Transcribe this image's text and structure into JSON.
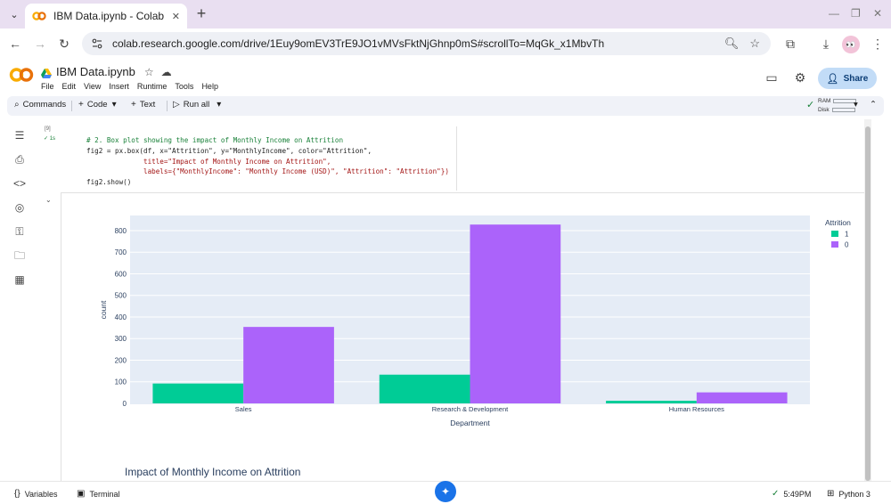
{
  "browser": {
    "tab_title": "IBM Data.ipynb - Colab",
    "url": "colab.research.google.com/drive/1Euy9omEV3TrE9JO1vMVsFktNjGhnp0mS#scrollTo=MqGk_x1MbvTh",
    "new_tab_label": "+",
    "close_label": "✕",
    "avatar_text": "👀"
  },
  "colab": {
    "logo_text": "CO",
    "notebook_title": "IBM Data.ipynb",
    "menu": [
      "File",
      "Edit",
      "View",
      "Insert",
      "Runtime",
      "Tools",
      "Help"
    ],
    "share_label": "Share"
  },
  "toolbar": {
    "commands_label": "Commands",
    "code_label": "Code",
    "text_label": "Text",
    "run_all_label": "Run all",
    "ram_label": "RAM",
    "disk_label": "Disk"
  },
  "cell": {
    "exec_count": "[9]",
    "exec_time": "✓ 1s",
    "code_lines": [
      "# 2. Box plot showing the impact of Monthly Income on Attrition",
      "fig2 = px.box(df, x=\"Attrition\", y=\"MonthlyIncome\", color=\"Attrition\",",
      "              title=\"Impact of Monthly Income on Attrition\",",
      "              labels={\"MonthlyIncome\": \"Monthly Income (USD)\", \"Attrition\": \"Attrition\"})",
      "fig2.show()"
    ]
  },
  "chart_data": [
    {
      "type": "bar",
      "title": "",
      "xlabel": "Department",
      "ylabel": "count",
      "categories": [
        "Sales",
        "Research & Development",
        "Human Resources"
      ],
      "series": [
        {
          "name": "1",
          "color": "#00cc96",
          "values": [
            92,
            133,
            12
          ]
        },
        {
          "name": "0",
          "color": "#ab63fa",
          "values": [
            354,
            828,
            51
          ]
        }
      ],
      "ylim": [
        0,
        870
      ],
      "yticks": [
        0,
        100,
        200,
        300,
        400,
        500,
        600,
        700,
        800
      ],
      "legend_title": "Attrition",
      "legend_position": "top-right",
      "grid": true
    },
    {
      "type": "box",
      "title": "Impact of Monthly Income on Attrition"
    }
  ],
  "statusbar": {
    "variables_label": "Variables",
    "terminal_label": "Terminal",
    "time": "5:49PM",
    "runtime_label": "Python 3"
  }
}
